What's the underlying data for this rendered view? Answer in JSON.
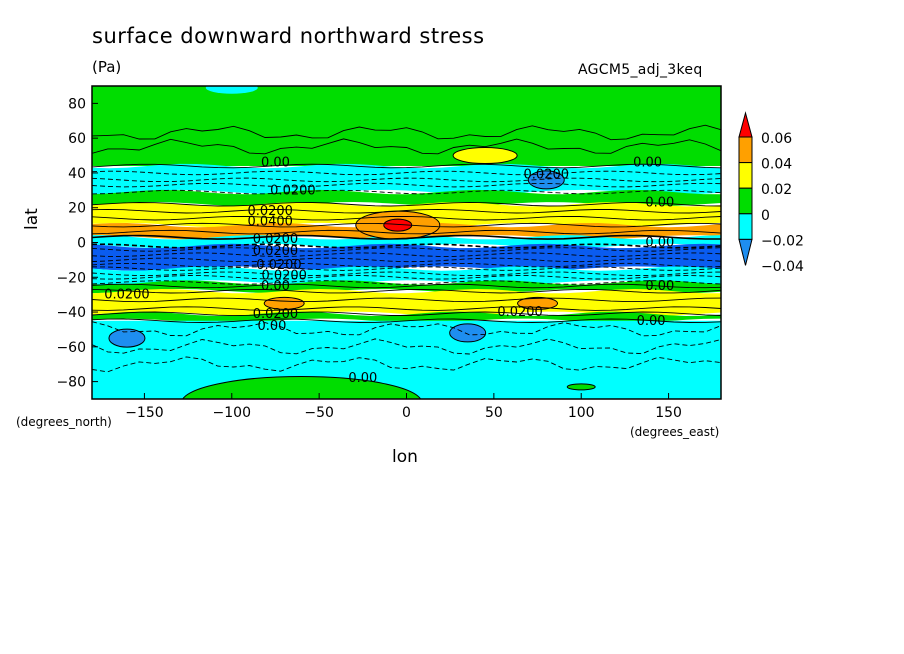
{
  "title": "surface downward northward stress",
  "units": "(Pa)",
  "dataset": "AGCM5_adj_3keq",
  "colors": {
    "neg2": "#1e8ef0",
    "neg1": "#00ffff",
    "zero": "#00dd00",
    "pos1": "#ffff00",
    "pos2": "#ffa000",
    "pos3": "#ff0000",
    "deepneg": "#0a5cf0"
  },
  "chart_data": {
    "type": "heatmap",
    "title": "surface downward northward stress",
    "units": "(Pa)",
    "dataset": "AGCM5_adj_3keq",
    "xlabel": "lon",
    "ylabel": "lat",
    "x_units": "(degrees_east)",
    "y_units": "(degrees_north)",
    "xlim": [
      -180,
      180
    ],
    "ylim": [
      -90,
      90
    ],
    "x_ticks": [
      -150,
      -100,
      -50,
      0,
      50,
      100,
      150
    ],
    "y_ticks": [
      -80,
      -60,
      -40,
      -20,
      0,
      20,
      40,
      60,
      80
    ],
    "colorbar": {
      "levels": [
        -0.04,
        -0.02,
        0,
        0.02,
        0.04,
        0.06
      ],
      "labels": [
        "-0.04",
        "-0.02",
        "0",
        "0.02",
        "0.04",
        "0.06"
      ],
      "colors": [
        "#1e8ef0",
        "#00ffff",
        "#00dd00",
        "#ffff00",
        "#ffa000",
        "#ff0000"
      ]
    },
    "zonal_bands": [
      {
        "lat_min": 44,
        "lat_max": 90,
        "level": "0 to 0.02"
      },
      {
        "lat_min": 29,
        "lat_max": 44,
        "level": "-0.02 to 0"
      },
      {
        "lat_min": 22,
        "lat_max": 29,
        "level": "0 to 0.02"
      },
      {
        "lat_min": 10,
        "lat_max": 22,
        "level": "0.02 to 0.04"
      },
      {
        "lat_min": 3,
        "lat_max": 10,
        "level": "0.04 to 0.06"
      },
      {
        "lat_min": -2,
        "lat_max": 3,
        "level": "-0.02 to 0"
      },
      {
        "lat_min": -15,
        "lat_max": -2,
        "level": "below -0.04"
      },
      {
        "lat_min": -23,
        "lat_max": -15,
        "level": "-0.02 to 0"
      },
      {
        "lat_min": -28,
        "lat_max": -23,
        "level": "0 to 0.02"
      },
      {
        "lat_min": -41,
        "lat_max": -28,
        "level": "0.02 to 0.04"
      },
      {
        "lat_min": -45,
        "lat_max": -41,
        "level": "0 to 0.02"
      },
      {
        "lat_min": -90,
        "lat_max": -45,
        "level": "-0.02 to 0"
      }
    ],
    "features": [
      {
        "name": "max near equator",
        "lon": -5,
        "lat": 10,
        "level": "above 0.06"
      },
      {
        "name": "positive patch",
        "lon": 45,
        "lat": 50,
        "level": "0.02 to 0.04"
      },
      {
        "name": "positive patch",
        "lon": -70,
        "lat": -35,
        "level": "0.04 to 0.06"
      },
      {
        "name": "positive patch",
        "lon": 75,
        "lat": -35,
        "level": "0.04 to 0.06"
      },
      {
        "name": "negative patch",
        "lon": 80,
        "lat": 36,
        "level": "-0.04 to -0.02"
      },
      {
        "name": "negative patch",
        "lon": -160,
        "lat": -55,
        "level": "-0.04 to -0.02"
      },
      {
        "name": "negative patch",
        "lon": 35,
        "lat": -52,
        "level": "-0.04 to -0.02"
      }
    ],
    "contour_labels": [
      {
        "text": "0.00",
        "lon": -75,
        "lat": 46
      },
      {
        "text": "0.0200",
        "lon": -65,
        "lat": 30
      },
      {
        "text": "0.0200",
        "lon": -78,
        "lat": 18
      },
      {
        "text": "0.0400",
        "lon": -78,
        "lat": 12
      },
      {
        "text": "0.0200",
        "lon": -75,
        "lat": 2
      },
      {
        "text": "0.0200",
        "lon": -75,
        "lat": -5
      },
      {
        "text": "0.0200",
        "lon": -73,
        "lat": -13
      },
      {
        "text": "0.0200",
        "lon": -70,
        "lat": -19
      },
      {
        "text": "0.00",
        "lon": -75,
        "lat": -25
      },
      {
        "text": "0.0200",
        "lon": -160,
        "lat": -30
      },
      {
        "text": "0.0200",
        "lon": -75,
        "lat": -41
      },
      {
        "text": "0.00",
        "lon": -77,
        "lat": -48
      },
      {
        "text": "0.00",
        "lon": -25,
        "lat": -78
      },
      {
        "text": "0.0200",
        "lon": 80,
        "lat": 39
      },
      {
        "text": "0.00",
        "lon": 138,
        "lat": 46
      },
      {
        "text": "0.00",
        "lon": 145,
        "lat": 23
      },
      {
        "text": "0.00",
        "lon": 145,
        "lat": 0
      },
      {
        "text": "0.00",
        "lon": 145,
        "lat": -25
      },
      {
        "text": "0.0200",
        "lon": 65,
        "lat": -40
      },
      {
        "text": "0.00",
        "lon": 140,
        "lat": -45
      }
    ]
  }
}
